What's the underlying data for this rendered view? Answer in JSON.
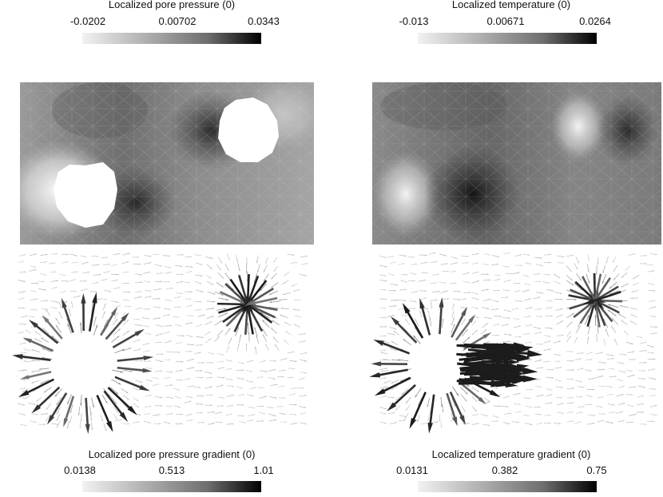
{
  "colorbars": {
    "pore_pressure": {
      "title": "Localized pore pressure (0)",
      "ticks": [
        "-0.0202",
        "0.00702",
        "0.0343"
      ]
    },
    "temperature": {
      "title": "Localized temperature (0)",
      "ticks": [
        "-0.013",
        "0.00671",
        "0.0264"
      ]
    },
    "pore_pressure_gradient": {
      "title": "Localized pore pressure gradient (0)",
      "ticks": [
        "0.0138",
        "0.513",
        "1.01"
      ]
    },
    "temperature_gradient": {
      "title": "Localized temperature gradient (0)",
      "ticks": [
        "0.0131",
        "0.382",
        "0.75"
      ]
    }
  },
  "colors": {
    "bar_low": "#f2f2f2",
    "bar_mid": "#6e6e6e",
    "bar_high": "#000000",
    "hole": "#ffffff"
  }
}
